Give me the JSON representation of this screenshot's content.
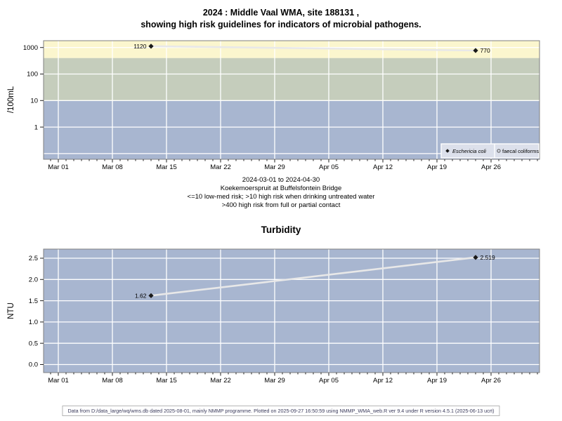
{
  "page": {
    "title_line1": "2024 : Middle Vaal WMA, site 188131 ,",
    "title_line2": "showing high risk guidelines for indicators of microbial pathogens.",
    "footer": "Data from D:/data_large/wq/wms.db dated 2025-08-01, mainly NMMP programme. Plotted on 2025-09-27 16:50:59 using NMMP_WMA_web.R ver 9.4 under R version 4.5.1 (2025-06-13 ucrt)"
  },
  "colors": {
    "band_high_risk_contact": "#FBF6CE",
    "band_high_risk_drinking": "#C5CDBC",
    "band_low_med_risk": "#A8B6D0",
    "plot_background": "#A8B6D0",
    "gridline": "#FFFFFF",
    "plot_border": "#808080",
    "series_line": "#E8E8E8",
    "marker": "#1A1A1A",
    "legend_background": "#DCE0EB"
  },
  "chart_data": [
    {
      "type": "line",
      "name": "microbial-indicators",
      "ylabel": "/100mL",
      "yscale": "log",
      "ylim": [
        0.06,
        1800
      ],
      "ytick_labels": [
        "1000",
        "100",
        "10",
        "1"
      ],
      "ytick_values": [
        1000,
        100,
        10,
        1
      ],
      "grid_values": [
        1000,
        100,
        10,
        1,
        0.1
      ],
      "x_tick_labels": [
        "Mar 01",
        "Mar 08",
        "Mar 15",
        "Mar 22",
        "Mar 29",
        "Apr 05",
        "Apr 12",
        "Apr 19",
        "Apr 26"
      ],
      "x_unit": "days since 2024-03-01",
      "bands": [
        {
          "name": "high risk from full or partial contact",
          "range": "> 400",
          "color_key": "band_high_risk_contact"
        },
        {
          "name": "high risk when drinking untreated water",
          "range": "10 - 400",
          "color_key": "band_high_risk_drinking"
        },
        {
          "name": "low-med risk",
          "range": "<= 10",
          "color_key": "band_low_med_risk"
        }
      ],
      "series": [
        {
          "name": "Eschericia coli",
          "marker": "filled-diamond",
          "points": [
            {
              "day": 12,
              "value": 1120,
              "label": "1120",
              "label_side": "left"
            },
            {
              "day": 54,
              "value": 770,
              "label": "770",
              "label_side": "right"
            }
          ]
        },
        {
          "name": "faecal coliforms",
          "marker": "open-circle",
          "points": []
        }
      ],
      "legend": [
        {
          "label": "Eschericia coli",
          "marker": "filled-diamond"
        },
        {
          "label": "faecal coliforms",
          "marker": "open-circle"
        }
      ],
      "subtitle_lines": [
        "2024-03-01 to 2024-04-30",
        "Koekemoerspruit at Buffelsfontein Bridge",
        "<=10 low-med risk; >10 high risk when drinking untreated water",
        ">400 high risk from full or partial contact"
      ]
    },
    {
      "type": "line",
      "name": "turbidity",
      "title": "Turbidity",
      "ylabel": "NTU",
      "yscale": "linear",
      "ylim": [
        -0.19,
        2.71
      ],
      "ytick_labels": [
        "0.0",
        "0.5",
        "1.0",
        "1.5",
        "2.0",
        "2.5"
      ],
      "ytick_values": [
        0,
        0.5,
        1,
        1.5,
        2,
        2.5
      ],
      "x_tick_labels": [
        "Mar 01",
        "Mar 08",
        "Mar 15",
        "Mar 22",
        "Mar 29",
        "Apr 05",
        "Apr 12",
        "Apr 19",
        "Apr 26"
      ],
      "x_unit": "days since 2024-03-01",
      "series": [
        {
          "name": "Turbidity",
          "marker": "filled-diamond",
          "points": [
            {
              "day": 12,
              "value": 1.62,
              "label": "1.62",
              "label_side": "left"
            },
            {
              "day": 54,
              "value": 2.519,
              "label": "2.519",
              "label_side": "right"
            }
          ]
        }
      ]
    }
  ]
}
